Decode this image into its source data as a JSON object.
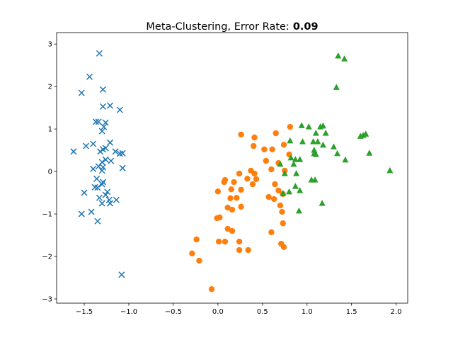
{
  "chart_data": {
    "type": "scatter",
    "title": "Meta-Clustering, Error Rate:",
    "title_value": 0.09,
    "xlim": [
      -1.81,
      2.13
    ],
    "ylim": [
      -3.1,
      3.27
    ],
    "xticks": [
      {
        "value": -1.5,
        "label": "−1.5"
      },
      {
        "value": -1.0,
        "label": "−1.0"
      },
      {
        "value": -0.5,
        "label": "−0.5"
      },
      {
        "value": 0.0,
        "label": "0.0"
      },
      {
        "value": 0.5,
        "label": "0.5"
      },
      {
        "value": 1.0,
        "label": "1.0"
      },
      {
        "value": 1.5,
        "label": "1.5"
      },
      {
        "value": 2.0,
        "label": "2.0"
      }
    ],
    "yticks": [
      {
        "value": -3,
        "label": "−3"
      },
      {
        "value": -2,
        "label": "−2"
      },
      {
        "value": -1,
        "label": "−1"
      },
      {
        "value": 0,
        "label": "0"
      },
      {
        "value": 1,
        "label": "1"
      },
      {
        "value": 2,
        "label": "2"
      },
      {
        "value": 3,
        "label": "3"
      }
    ],
    "series": [
      {
        "color": "#1f77b4",
        "marker": "x",
        "x": [
          -1.33,
          -1.44,
          -1.53,
          -1.29,
          -1.29,
          -1.21,
          -1.1,
          -1.37,
          -1.34,
          -1.26,
          -1.28,
          -1.3,
          -1.21,
          -1.4,
          -1.48,
          -1.62,
          -1.32,
          -1.29,
          -1.26,
          -1.15,
          -1.1,
          -1.07,
          -1.26,
          -1.3,
          -1.2,
          -1.34,
          -1.4,
          -1.29,
          -1.3,
          -1.07,
          -1.36,
          -1.29,
          -1.38,
          -1.35,
          -1.3,
          -1.5,
          -1.24,
          -1.26,
          -1.33,
          -1.22,
          -1.14,
          -1.21,
          -1.3,
          -1.42,
          -1.53,
          -1.35,
          -1.08
        ],
        "values": [
          2.78,
          2.23,
          1.85,
          1.93,
          1.53,
          1.55,
          1.45,
          1.17,
          1.17,
          1.15,
          1.05,
          0.95,
          0.68,
          0.65,
          0.6,
          0.47,
          0.47,
          0.52,
          0.55,
          0.47,
          0.42,
          0.43,
          0.28,
          0.22,
          0.25,
          0.12,
          0.06,
          0.1,
          0.02,
          0.08,
          -0.17,
          -0.25,
          -0.37,
          -0.38,
          -0.3,
          -0.5,
          -0.48,
          -0.55,
          -0.62,
          -0.67,
          -0.67,
          -0.75,
          -0.75,
          -0.95,
          -1.0,
          -1.17,
          -2.43
        ]
      },
      {
        "color": "#ff7f0e",
        "marker": "o",
        "x": [
          0.26,
          0.41,
          0.65,
          0.81,
          0.4,
          0.52,
          0.61,
          0.74,
          0.8,
          0.54,
          0.68,
          0.75,
          0.6,
          0.37,
          0.41,
          0.24,
          0.08,
          0.07,
          0.18,
          0.33,
          0.43,
          0.39,
          0.26,
          0.15,
          0.0,
          0.64,
          0.68,
          0.57,
          0.73,
          0.21,
          0.14,
          0.63,
          0.7,
          0.72,
          0.11,
          0.16,
          0.26,
          -0.01,
          0.02,
          0.11,
          0.16,
          0.73,
          0.6,
          -0.24,
          0.01,
          0.08,
          0.24,
          0.71,
          0.74,
          0.24,
          0.34,
          -0.29,
          -0.21,
          -0.07
        ],
        "values": [
          0.87,
          0.8,
          0.9,
          1.05,
          0.6,
          0.52,
          0.52,
          0.63,
          0.4,
          0.25,
          0.2,
          0.02,
          0.05,
          0.02,
          -0.05,
          -0.05,
          -0.2,
          -0.25,
          -0.25,
          -0.17,
          -0.18,
          -0.3,
          -0.43,
          -0.42,
          -0.47,
          -0.3,
          -0.45,
          -0.6,
          -0.53,
          -0.62,
          -0.63,
          -0.65,
          -0.8,
          -0.95,
          -0.85,
          -0.9,
          -0.83,
          -1.1,
          -1.08,
          -1.35,
          -1.4,
          -1.22,
          -1.43,
          -1.6,
          -1.65,
          -1.65,
          -1.65,
          -1.7,
          -1.78,
          -1.85,
          -1.85,
          -1.93,
          -2.1,
          -2.77
        ]
      },
      {
        "color": "#2ca02c",
        "marker": "^",
        "x": [
          1.35,
          1.42,
          1.33,
          0.94,
          1.02,
          1.15,
          1.18,
          1.1,
          1.21,
          0.81,
          0.95,
          1.07,
          1.12,
          1.18,
          1.3,
          1.63,
          1.66,
          1.6,
          1.08,
          1.08,
          1.34,
          1.7,
          1.43,
          0.87,
          0.82,
          0.92,
          1.1,
          1.93,
          0.85,
          0.7,
          0.75,
          0.88,
          1.05,
          1.09,
          0.8,
          0.87,
          0.92,
          0.73,
          1.17,
          0.91
        ],
        "values": [
          2.72,
          2.65,
          1.98,
          1.08,
          1.05,
          1.05,
          1.07,
          0.9,
          0.9,
          0.72,
          0.7,
          0.7,
          0.7,
          0.62,
          0.58,
          0.85,
          0.88,
          0.83,
          0.5,
          0.42,
          0.42,
          0.43,
          0.27,
          0.28,
          0.32,
          0.28,
          0.4,
          0.02,
          0.17,
          0.17,
          -0.05,
          -0.05,
          -0.2,
          -0.2,
          -0.48,
          -0.35,
          -0.45,
          -0.52,
          -0.75,
          -0.93
        ]
      }
    ]
  }
}
